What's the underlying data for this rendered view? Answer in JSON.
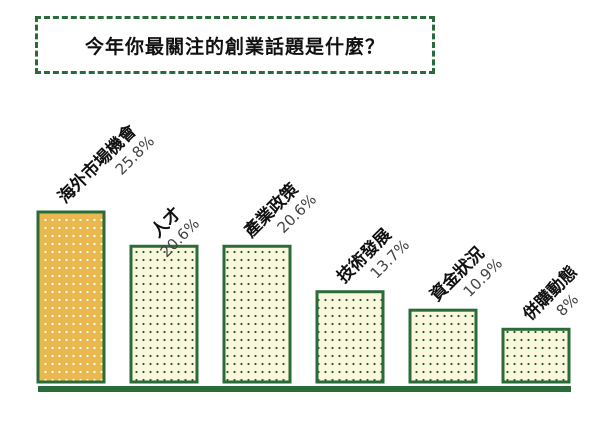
{
  "title": "今年你最關注的創業話題是什麼？",
  "chart_data": {
    "type": "bar",
    "categories": [
      "海外市場機會",
      "人才",
      "產業政策",
      "技術發展",
      "資金狀況",
      "併購動態"
    ],
    "values": [
      25.8,
      20.6,
      20.6,
      13.7,
      10.9,
      8
    ],
    "value_labels": [
      "25.8%",
      "20.6%",
      "20.6%",
      "13.7%",
      "10.9%",
      "8%"
    ],
    "title": "今年你最關注的創業話題是什麼？",
    "ylim": [
      0,
      25.8
    ],
    "grid": false,
    "legend": "none"
  },
  "colors": {
    "border": "#2a6b3a",
    "highlight_fill": "#e9b94f",
    "normal_fill": "#fbf7dc",
    "dot": "#1f5e2f",
    "baseline": "#2a6b3a"
  }
}
